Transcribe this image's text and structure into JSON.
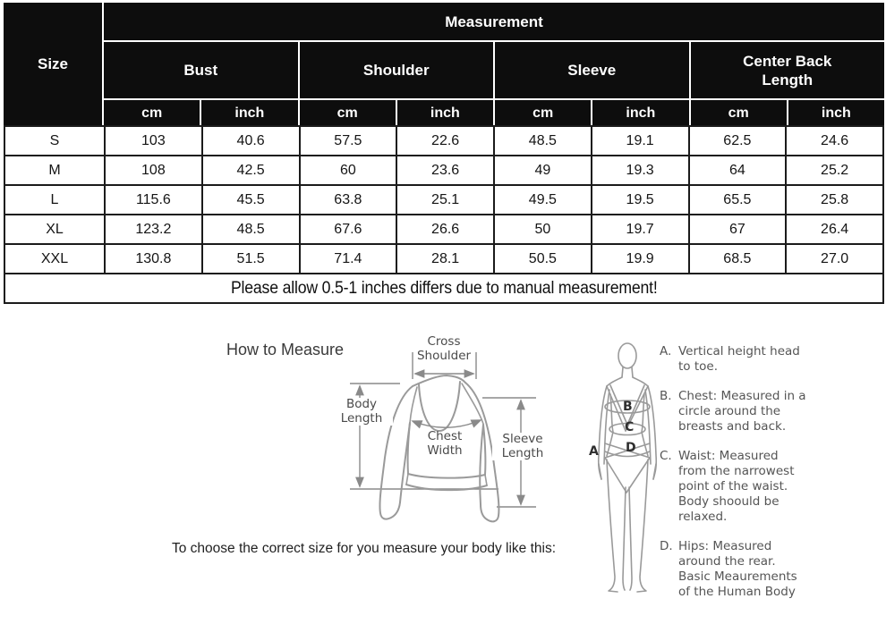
{
  "table": {
    "title": "Measurement",
    "size_header": "Size",
    "groups": [
      "Bust",
      "Shoulder",
      "Sleeve",
      "Center Back\nLength"
    ],
    "units": [
      "cm",
      "inch",
      "cm",
      "inch",
      "cm",
      "inch",
      "cm",
      "inch"
    ],
    "rows": [
      {
        "size": "S",
        "values": [
          "103",
          "40.6",
          "57.5",
          "22.6",
          "48.5",
          "19.1",
          "62.5",
          "24.6"
        ]
      },
      {
        "size": "M",
        "values": [
          "108",
          "42.5",
          "60",
          "23.6",
          "49",
          "19.3",
          "64",
          "25.2"
        ]
      },
      {
        "size": "L",
        "values": [
          "115.6",
          "45.5",
          "63.8",
          "25.1",
          "49.5",
          "19.5",
          "65.5",
          "25.8"
        ]
      },
      {
        "size": "XL",
        "values": [
          "123.2",
          "48.5",
          "67.6",
          "26.6",
          "50",
          "19.7",
          "67",
          "26.4"
        ]
      },
      {
        "size": "XXL",
        "values": [
          "130.8",
          "51.5",
          "71.4",
          "28.1",
          "50.5",
          "19.9",
          "68.5",
          "27.0"
        ]
      }
    ],
    "note": "Please allow 0.5-1 inches differs due to manual measurement!"
  },
  "guide": {
    "title": "How to Measure",
    "garment_labels": {
      "cross_shoulder": "Cross\nShoulder",
      "body_length": "Body\nLength",
      "chest_width": "Chest\nWidth",
      "sleeve_length": "Sleeve\nLength"
    },
    "figure_markers": {
      "a": "A",
      "b": "B",
      "c": "C",
      "d": "D"
    },
    "instructions": [
      {
        "label": "A.",
        "text": "Vertical height head\nto toe."
      },
      {
        "label": "B.",
        "text": "Chest: Measured in a\ncircle around the\nbreasts and back."
      },
      {
        "label": "C.",
        "text": "Waist: Measured\nfrom the narrowest\npoint of the waist.\nBody shoould be\nrelaxed."
      },
      {
        "label": "D.",
        "text": "Hips: Measured\naround the rear.\nBasic Meaurements\nof the Human Body"
      }
    ],
    "footer": "To choose the correct size for you measure your body like this:"
  },
  "colors": {
    "header_bg": "#0d0d0d",
    "header_text": "#ffffff",
    "table_border": "#1b1b1b",
    "diagram_stroke": "#9a9a9a",
    "diagram_text": "#4a4a4a",
    "instruction_text": "#555555"
  }
}
